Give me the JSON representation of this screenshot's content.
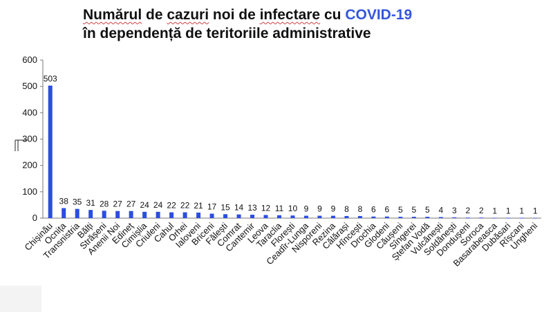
{
  "title_parts": {
    "w1": "Numărul",
    "w2": " de ",
    "w3": "cazuri",
    "w4": " noi de ",
    "w5": "infectare",
    "w6": " cu ",
    "w7": "COVID-19",
    "line2": "în dependență de teritoriile administrative"
  },
  "colors": {
    "bar": "#2b4de0",
    "title_accent": "#3355dd"
  },
  "chart_data": {
    "type": "bar",
    "title": "Numărul de cazuri noi de infectare cu COVID-19 în dependență de teritoriile administrative",
    "xlabel": "",
    "ylabel": "",
    "ylim": [
      0,
      600
    ],
    "yticks": [
      0,
      100,
      200,
      300,
      400,
      500,
      600
    ],
    "grid": false,
    "categories": [
      "Chișinău",
      "Ocnița",
      "Transnistria",
      "Bălți",
      "Strășeni",
      "Anenii Noi",
      "Edineț",
      "Cimișlia",
      "Criuleni",
      "Cahul",
      "Orhei",
      "Ialoveni",
      "Briceni",
      "Fălești",
      "Comrat",
      "Cantemir",
      "Leova",
      "Taraclia",
      "Florești",
      "Ceadîr-Lunga",
      "Nisporeni",
      "Rezina",
      "Călărași",
      "Hîncești",
      "Drochia",
      "Glodeni",
      "Căușeni",
      "Sîngerei",
      "Ștefan Vodă",
      "Vulcănești",
      "Soldănești",
      "Dondușeni",
      "Soroca",
      "Basarabeasca",
      "Dubăsari",
      "Rîșcani",
      "Ungheni"
    ],
    "values": [
      503,
      38,
      35,
      31,
      28,
      27,
      27,
      24,
      24,
      22,
      22,
      21,
      17,
      15,
      14,
      13,
      12,
      11,
      10,
      9,
      9,
      9,
      8,
      8,
      6,
      6,
      5,
      5,
      5,
      4,
      3,
      2,
      2,
      1,
      1,
      1,
      1
    ]
  }
}
